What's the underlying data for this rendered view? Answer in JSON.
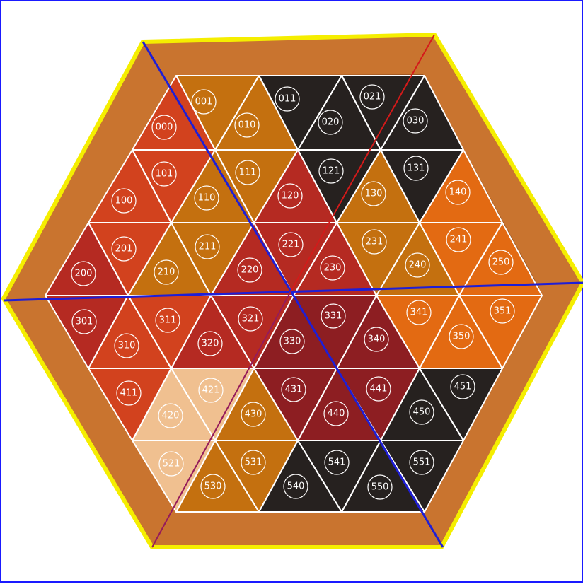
{
  "colors": {
    "frame": "#c9742f",
    "frame_dark": "#9a5420",
    "outline": "#f5ee00",
    "grid": "#ffffff",
    "axis_blue": "#1e1ed6",
    "axis_red": "#d41a1a",
    "black": "#26211f",
    "red": "#b52a22",
    "crimson": "#8d1e22",
    "orange": "#e36a12",
    "amber": "#c4700f",
    "redorange": "#d2421e",
    "cream": "#f0c090"
  },
  "pieces": [
    {
      "label": "000",
      "c": "redorange"
    },
    {
      "label": "001",
      "c": "amber"
    },
    {
      "label": "010",
      "c": "amber"
    },
    {
      "label": "011",
      "c": "black"
    },
    {
      "label": "020",
      "c": "black"
    },
    {
      "label": "021",
      "c": "black"
    },
    {
      "label": "030",
      "c": "black"
    },
    {
      "label": "100",
      "c": "redorange"
    },
    {
      "label": "101",
      "c": "redorange"
    },
    {
      "label": "110",
      "c": "amber"
    },
    {
      "label": "111",
      "c": "amber"
    },
    {
      "label": "120",
      "c": "red"
    },
    {
      "label": "121",
      "c": "black"
    },
    {
      "label": "130",
      "c": "amber"
    },
    {
      "label": "131",
      "c": "black"
    },
    {
      "label": "140",
      "c": "orange"
    },
    {
      "label": "200",
      "c": "red"
    },
    {
      "label": "201",
      "c": "redorange"
    },
    {
      "label": "210",
      "c": "amber"
    },
    {
      "label": "211",
      "c": "amber"
    },
    {
      "label": "220",
      "c": "red"
    },
    {
      "label": "221",
      "c": "red"
    },
    {
      "label": "230",
      "c": "red"
    },
    {
      "label": "231",
      "c": "amber"
    },
    {
      "label": "240",
      "c": "amber"
    },
    {
      "label": "241",
      "c": "orange"
    },
    {
      "label": "250",
      "c": "orange"
    },
    {
      "label": "301",
      "c": "red"
    },
    {
      "label": "310",
      "c": "redorange"
    },
    {
      "label": "311",
      "c": "redorange"
    },
    {
      "label": "320",
      "c": "red"
    },
    {
      "label": "321",
      "c": "red"
    },
    {
      "label": "330",
      "c": "crimson"
    },
    {
      "label": "331",
      "c": "crimson"
    },
    {
      "label": "340",
      "c": "crimson"
    },
    {
      "label": "341",
      "c": "orange"
    },
    {
      "label": "350",
      "c": "orange"
    },
    {
      "label": "351",
      "c": "orange"
    },
    {
      "label": "411",
      "c": "redorange"
    },
    {
      "label": "420",
      "c": "cream"
    },
    {
      "label": "421",
      "c": "cream"
    },
    {
      "label": "430",
      "c": "amber"
    },
    {
      "label": "431",
      "c": "crimson"
    },
    {
      "label": "440",
      "c": "crimson"
    },
    {
      "label": "441",
      "c": "crimson"
    },
    {
      "label": "450",
      "c": "black"
    },
    {
      "label": "451",
      "c": "black"
    },
    {
      "label": "521",
      "c": "cream"
    },
    {
      "label": "530",
      "c": "amber"
    },
    {
      "label": "531",
      "c": "amber"
    },
    {
      "label": "540",
      "c": "black"
    },
    {
      "label": "541",
      "c": "black"
    },
    {
      "label": "550",
      "c": "black"
    },
    {
      "label": "551",
      "c": "black"
    }
  ]
}
